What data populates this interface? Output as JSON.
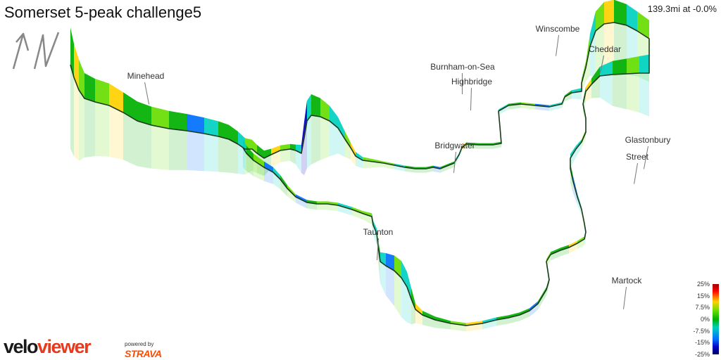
{
  "title": "Somerset 5-peak challenge5",
  "stats": "139.3mi at -0.0%",
  "icons": {
    "compass": "north-arrow-icon"
  },
  "places": [
    {
      "name": "Minehead"
    },
    {
      "name": "Winscombe"
    },
    {
      "name": "Cheddar"
    },
    {
      "name": "Burnham-on-Sea"
    },
    {
      "name": "Highbridge"
    },
    {
      "name": "Bridgwater"
    },
    {
      "name": "Glastonbury"
    },
    {
      "name": "Street"
    },
    {
      "name": "Taunton"
    },
    {
      "name": "Martock"
    }
  ],
  "legend": {
    "labels": [
      "25%",
      "15%",
      "7.5%",
      "0%",
      "-7.5%",
      "-15%",
      "-25%"
    ],
    "colors": [
      "#a00000",
      "#ff0000",
      "#ffd000",
      "#66dd00",
      "#00b000",
      "#00d0c0",
      "#0070ff",
      "#0000c0",
      "#00005a"
    ]
  },
  "branding": {
    "logo_part1": "velo",
    "logo_part2": "viewer",
    "powered_by": "powered by",
    "strava": "STRAVA"
  }
}
